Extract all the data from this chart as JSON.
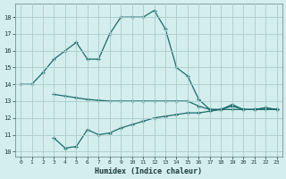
{
  "xlabel": "Humidex (Indice chaleur)",
  "bg_color": "#d4eeee",
  "grid_color": "#aacccc",
  "line_color": "#1a6b6a",
  "xlim": [
    -0.5,
    23.5
  ],
  "ylim": [
    9.7,
    18.8
  ],
  "yticks": [
    10,
    11,
    12,
    13,
    14,
    15,
    16,
    17,
    18
  ],
  "xticks": [
    0,
    1,
    2,
    3,
    4,
    5,
    6,
    7,
    8,
    9,
    10,
    11,
    12,
    13,
    14,
    15,
    16,
    17,
    18,
    19,
    20,
    21,
    22,
    23
  ],
  "line1_x": [
    0,
    1,
    2,
    3,
    4,
    5,
    6,
    7,
    8,
    9,
    10,
    11,
    12,
    13,
    14,
    15,
    16,
    17,
    18,
    19,
    20,
    21,
    22,
    23
  ],
  "line1_y": [
    14.0,
    14.0,
    14.7,
    15.5,
    16.0,
    16.5,
    15.5,
    15.5,
    17.0,
    18.0,
    18.0,
    18.0,
    18.4,
    17.3,
    15.0,
    14.5,
    13.1,
    12.5,
    12.5,
    12.8,
    12.5,
    12.5,
    12.6,
    12.5
  ],
  "line2_x": [
    3,
    4,
    5,
    6,
    7,
    8,
    9,
    10,
    11,
    12,
    13,
    14,
    15,
    16,
    17,
    18,
    19,
    20,
    21,
    22,
    23
  ],
  "line2_y": [
    13.4,
    13.3,
    13.2,
    13.1,
    13.05,
    13.0,
    13.0,
    13.0,
    13.0,
    13.0,
    13.0,
    13.0,
    13.0,
    12.7,
    12.5,
    12.5,
    12.7,
    12.5,
    12.5,
    12.6,
    12.5
  ],
  "line3_x": [
    3,
    4,
    5,
    6,
    7,
    8,
    9,
    10,
    11,
    12,
    13,
    14,
    15,
    16,
    17,
    18,
    19,
    20,
    21,
    22,
    23
  ],
  "line3_y": [
    10.8,
    10.2,
    10.3,
    11.3,
    11.0,
    11.1,
    11.4,
    11.6,
    11.8,
    12.0,
    12.1,
    12.2,
    12.3,
    12.3,
    12.4,
    12.5,
    12.5,
    12.5,
    12.5,
    12.5,
    12.5
  ]
}
